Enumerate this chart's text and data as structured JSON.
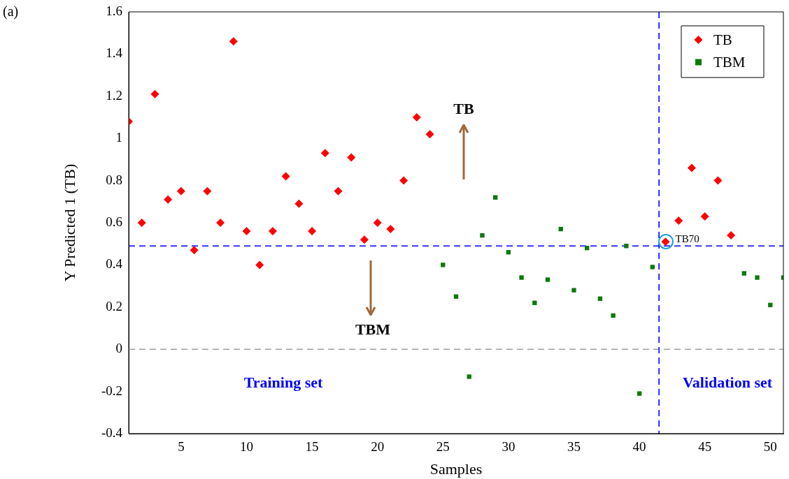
{
  "chart_data": {
    "type": "scatter",
    "xlabel": "Samples",
    "ylabel": "Y Predicted 1 (TB)",
    "xlim": [
      1,
      51
    ],
    "xticks": [
      5,
      10,
      15,
      20,
      25,
      30,
      35,
      40,
      45,
      50
    ],
    "ylim": [
      -0.4,
      1.6
    ],
    "yticks": [
      -0.4,
      -0.2,
      0,
      0.2,
      0.4,
      0.6,
      0.8,
      1,
      1.2,
      1.4,
      1.6
    ],
    "grid": false,
    "legend": "top right",
    "series": [
      {
        "name": "TB",
        "color": "#ff0000",
        "marker": "diamond",
        "x": [
          1,
          2,
          3,
          4,
          5,
          6,
          7,
          8,
          9,
          10,
          11,
          12,
          13,
          14,
          15,
          16,
          17,
          18,
          19,
          20,
          21,
          22,
          23,
          24,
          42,
          43,
          44,
          45,
          46,
          47
        ],
        "values": [
          1.08,
          0.6,
          1.21,
          0.71,
          0.75,
          0.47,
          0.75,
          0.6,
          1.46,
          0.56,
          0.4,
          0.56,
          0.82,
          0.69,
          0.56,
          0.93,
          0.75,
          0.91,
          0.52,
          0.6,
          0.57,
          0.8,
          1.1,
          1.02,
          0.51,
          0.61,
          0.86,
          0.63,
          0.8,
          0.54
        ]
      },
      {
        "name": "TBM",
        "color": "#0b7a0b",
        "marker": "square",
        "x": [
          25,
          26,
          27,
          28,
          29,
          30,
          31,
          32,
          33,
          34,
          35,
          36,
          37,
          38,
          39,
          40,
          41,
          48,
          49,
          50,
          51
        ],
        "values": [
          0.4,
          0.25,
          -0.13,
          0.54,
          0.72,
          0.46,
          0.34,
          0.22,
          0.33,
          0.57,
          0.28,
          0.48,
          0.24,
          0.16,
          0.49,
          -0.21,
          0.39,
          0.36,
          0.34,
          0.21,
          0.34
        ]
      }
    ],
    "ref_lines": [
      {
        "axis": "y",
        "value": 0.49,
        "color": "#0000ff",
        "line_style": "dashed"
      },
      {
        "axis": "y",
        "value": 0,
        "color": "#a0a0a0",
        "line_style": "dashed"
      },
      {
        "axis": "x",
        "value": 41.5,
        "color": "#0000ff",
        "line_style": "dashed"
      }
    ],
    "annotations": [
      "(a)",
      "TB",
      "TBM",
      "Training set",
      "Validation set",
      {
        "text": "TB70",
        "x": 42,
        "y": 0.51
      }
    ]
  }
}
